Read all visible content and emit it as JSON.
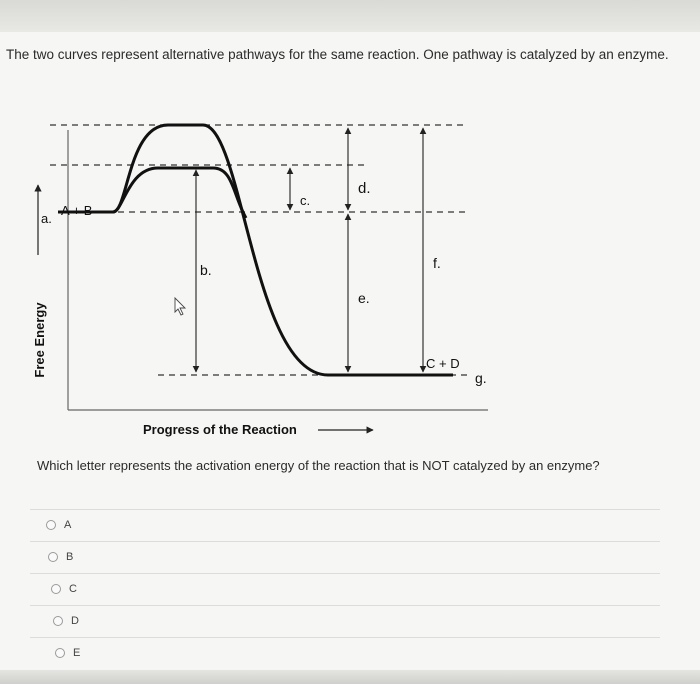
{
  "intro_text": "The two curves represent alternative pathways for the same reaction. One pathway is catalyzed by an enzyme.",
  "diagram": {
    "y_axis_label": "Free Energy",
    "x_axis_label": "Progress of the Reaction",
    "reactant_label": "A + B",
    "product_label": "C + D",
    "letters": {
      "a": "a.",
      "b": "b.",
      "c": "c.",
      "d": "d.",
      "e": "e.",
      "f": "f.",
      "g": "g."
    }
  },
  "question_text": "Which letter represents the activation energy of the reaction that is NOT catalyzed by an enzyme?",
  "options": [
    "A",
    "B",
    "C",
    "D",
    "E"
  ]
}
